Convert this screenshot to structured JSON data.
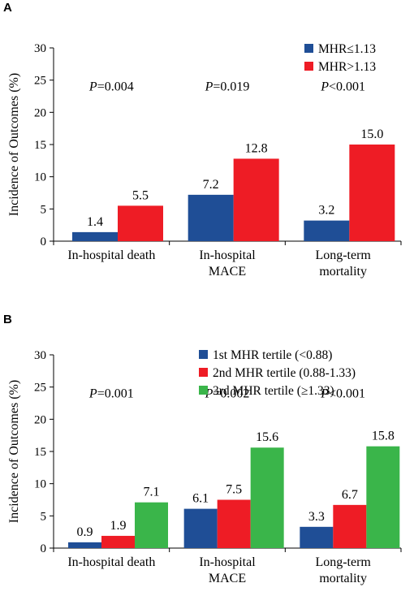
{
  "chart_data": [
    {
      "panel_label": "A",
      "type": "bar",
      "ylabel": "Incidence of Outcomes (%)",
      "ylim": [
        0,
        30
      ],
      "yticks": [
        0,
        5,
        10,
        15,
        20,
        25,
        30
      ],
      "grid": false,
      "legend_position": "top-right",
      "categories": [
        [
          "In-hospital death"
        ],
        [
          "In-hospital",
          "MACE"
        ],
        [
          "Long-term",
          "mortality"
        ]
      ],
      "series": [
        {
          "name": "MHR≤1.13",
          "color": "#1f4e96",
          "values": [
            1.4,
            7.2,
            3.2
          ],
          "labels": [
            "1.4",
            "7.2",
            "3.2"
          ]
        },
        {
          "name": "MHR>1.13",
          "color": "#ee1c25",
          "values": [
            5.5,
            12.8,
            15.0
          ],
          "labels": [
            "5.5",
            "12.8",
            "15.0"
          ]
        }
      ],
      "p_values": [
        {
          "prefix": "P",
          "text": "=0.004"
        },
        {
          "prefix": "P",
          "text": "=0.019"
        },
        {
          "prefix": "P",
          "text": "<0.001"
        }
      ]
    },
    {
      "panel_label": "B",
      "type": "bar",
      "ylabel": "Incidence of Outcomes (%)",
      "ylim": [
        0,
        30
      ],
      "yticks": [
        0,
        5,
        10,
        15,
        20,
        25,
        30
      ],
      "grid": false,
      "legend_position": "top-right",
      "categories": [
        [
          "In-hospital death"
        ],
        [
          "In-hospital",
          "MACE"
        ],
        [
          "Long-term",
          "mortality"
        ]
      ],
      "series": [
        {
          "name": "1st MHR tertile (<0.88)",
          "color": "#1f4e96",
          "values": [
            0.9,
            6.1,
            3.3
          ],
          "labels": [
            "0.9",
            "6.1",
            "3.3"
          ]
        },
        {
          "name": "2nd MHR tertile (0.88-1.33)",
          "color": "#ee1c25",
          "values": [
            1.9,
            7.5,
            6.7
          ],
          "labels": [
            "1.9",
            "7.5",
            "6.7"
          ]
        },
        {
          "name": "3rd MHR tertile (≥1.33)",
          "color": "#3ab54a",
          "values": [
            7.1,
            15.6,
            15.8
          ],
          "labels": [
            "7.1",
            "15.6",
            "15.8"
          ]
        }
      ],
      "p_values": [
        {
          "prefix": "P",
          "text": "=0.001"
        },
        {
          "prefix": "P",
          "text": "=0.002"
        },
        {
          "prefix": "P",
          "text": "<0.001"
        }
      ]
    }
  ]
}
